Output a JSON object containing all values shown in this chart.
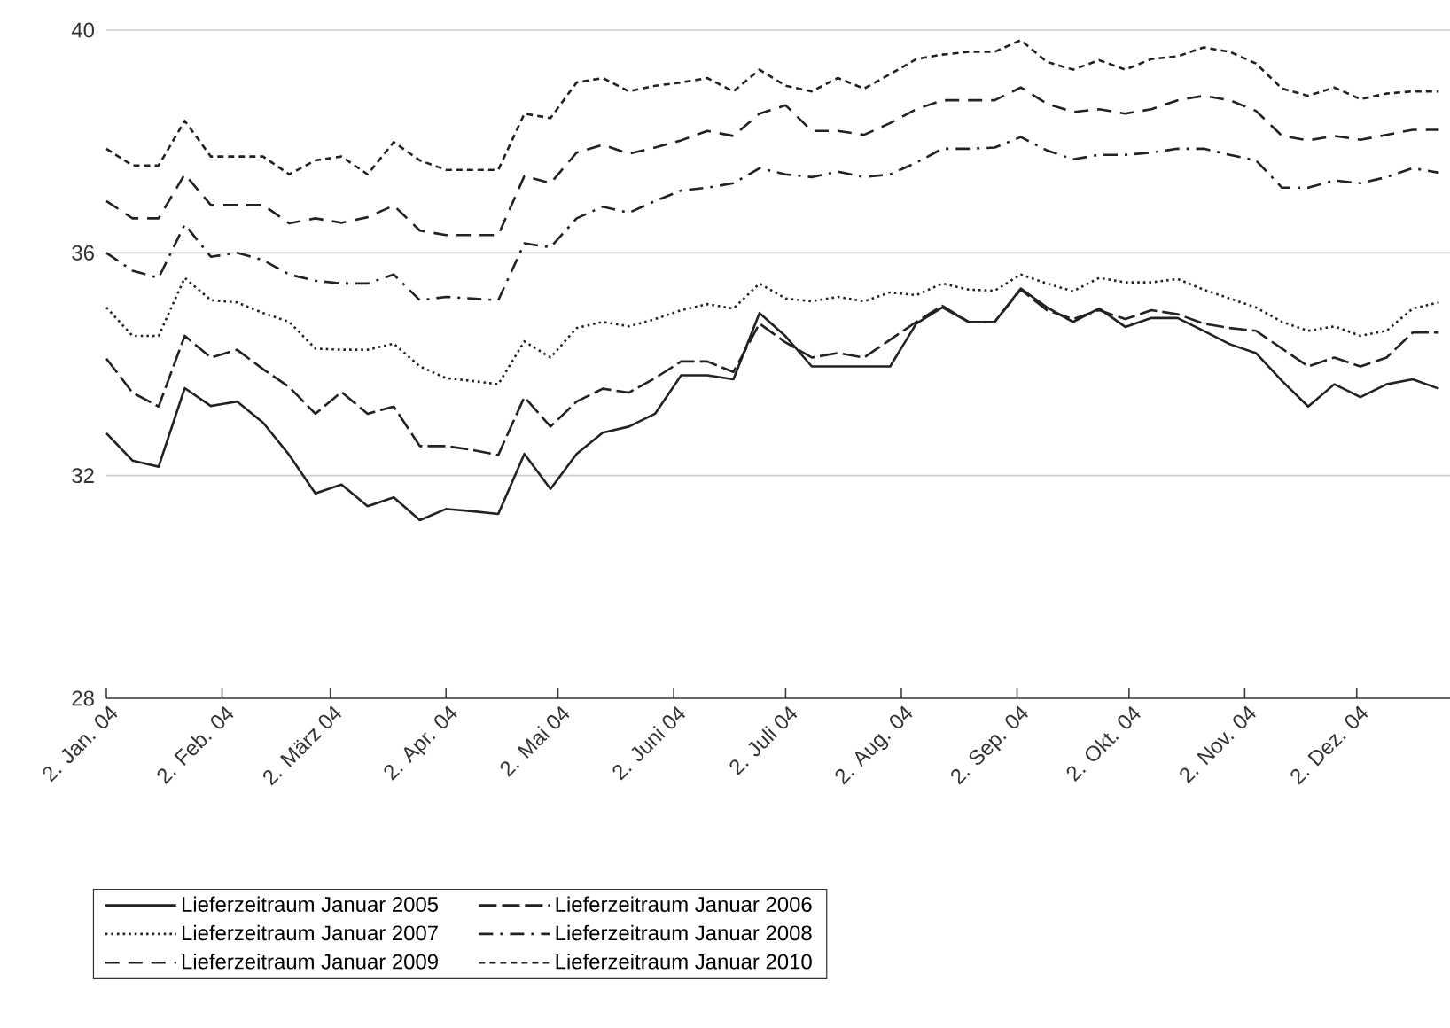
{
  "chart_data": {
    "type": "line",
    "x": [
      "2004-01-02",
      "2004-01-09",
      "2004-01-16",
      "2004-01-23",
      "2004-01-30",
      "2004-02-06",
      "2004-02-13",
      "2004-02-20",
      "2004-02-27",
      "2004-03-05",
      "2004-03-12",
      "2004-03-19",
      "2004-03-26",
      "2004-04-02",
      "2004-04-09",
      "2004-04-16",
      "2004-04-23",
      "2004-04-30",
      "2004-05-07",
      "2004-05-14",
      "2004-05-21",
      "2004-05-28",
      "2004-06-04",
      "2004-06-11",
      "2004-06-18",
      "2004-06-25",
      "2004-07-02",
      "2004-07-09",
      "2004-07-16",
      "2004-07-23",
      "2004-07-30",
      "2004-08-06",
      "2004-08-13",
      "2004-08-20",
      "2004-08-27",
      "2004-09-03",
      "2004-09-10",
      "2004-09-17",
      "2004-09-24",
      "2004-10-01",
      "2004-10-08",
      "2004-10-15",
      "2004-10-22",
      "2004-10-29",
      "2004-11-05",
      "2004-11-12",
      "2004-11-19",
      "2004-11-26",
      "2004-12-03",
      "2004-12-10",
      "2004-12-17",
      "2004-12-24"
    ],
    "series": [
      {
        "name": "Lieferzeitraum Januar 2005",
        "color": "#222222",
        "line_style": "solid",
        "values": [
          32.76,
          32.27,
          32.16,
          33.57,
          33.25,
          33.33,
          32.95,
          32.37,
          31.68,
          31.84,
          31.45,
          31.61,
          31.2,
          31.4,
          31.36,
          31.31,
          32.39,
          31.76,
          32.39,
          32.77,
          32.88,
          33.11,
          33.8,
          33.8,
          33.73,
          34.92,
          34.5,
          33.96,
          33.96,
          33.96,
          33.96,
          34.73,
          35.02,
          34.76,
          34.76,
          35.36,
          35.02,
          34.76,
          35.0,
          34.67,
          34.83,
          34.83,
          34.6,
          34.36,
          34.2,
          33.7,
          33.24,
          33.64,
          33.41,
          33.64,
          33.73,
          33.56
        ]
      },
      {
        "name": "Lieferzeitraum Januar 2006",
        "color": "#222222",
        "line_style": "long dashed",
        "values": [
          34.1,
          33.49,
          33.24,
          34.51,
          34.12,
          34.26,
          33.91,
          33.59,
          33.11,
          33.5,
          33.11,
          33.24,
          32.53,
          32.53,
          32.46,
          32.37,
          33.41,
          32.88,
          33.33,
          33.56,
          33.49,
          33.75,
          34.05,
          34.05,
          33.86,
          34.73,
          34.39,
          34.12,
          34.2,
          34.12,
          34.44,
          34.76,
          35.05,
          34.76,
          34.76,
          35.34,
          34.97,
          34.81,
          34.97,
          34.81,
          34.97,
          34.9,
          34.73,
          34.65,
          34.6,
          34.28,
          33.96,
          34.12,
          33.96,
          34.12,
          34.57,
          34.57
        ]
      },
      {
        "name": "Lieferzeitraum Januar 2007",
        "color": "#222222",
        "line_style": "dotted",
        "values": [
          35.02,
          34.51,
          34.51,
          35.55,
          35.15,
          35.11,
          34.92,
          34.76,
          34.28,
          34.26,
          34.26,
          34.37,
          33.96,
          33.75,
          33.7,
          33.64,
          34.41,
          34.12,
          34.65,
          34.76,
          34.68,
          34.81,
          34.97,
          35.08,
          35.0,
          35.45,
          35.18,
          35.13,
          35.21,
          35.13,
          35.29,
          35.24,
          35.45,
          35.34,
          35.32,
          35.61,
          35.45,
          35.31,
          35.55,
          35.47,
          35.47,
          35.53,
          35.34,
          35.18,
          35.02,
          34.76,
          34.6,
          34.68,
          34.51,
          34.6,
          35.0,
          35.11
        ]
      },
      {
        "name": "Lieferzeitraum Januar 2008",
        "color": "#222222",
        "line_style": "dash dot",
        "values": [
          36.0,
          35.68,
          35.55,
          36.51,
          35.93,
          36.0,
          35.87,
          35.61,
          35.5,
          35.45,
          35.45,
          35.61,
          35.15,
          35.21,
          35.18,
          35.15,
          36.17,
          36.1,
          36.62,
          36.83,
          36.72,
          36.93,
          37.12,
          37.17,
          37.25,
          37.52,
          37.41,
          37.36,
          37.46,
          37.36,
          37.41,
          37.62,
          37.87,
          37.87,
          37.89,
          38.08,
          37.84,
          37.68,
          37.76,
          37.76,
          37.8,
          37.87,
          37.87,
          37.76,
          37.66,
          37.17,
          37.17,
          37.3,
          37.25,
          37.36,
          37.52,
          37.44
        ]
      },
      {
        "name": "Lieferzeitraum Januar 2009",
        "color": "#222222",
        "line_style": "dashed",
        "values": [
          36.93,
          36.62,
          36.62,
          37.41,
          36.86,
          36.86,
          36.86,
          36.53,
          36.62,
          36.54,
          36.64,
          36.85,
          36.4,
          36.32,
          36.32,
          36.32,
          37.38,
          37.25,
          37.8,
          37.94,
          37.78,
          37.89,
          38.02,
          38.19,
          38.1,
          38.5,
          38.65,
          38.19,
          38.19,
          38.12,
          38.33,
          38.58,
          38.74,
          38.74,
          38.74,
          38.97,
          38.68,
          38.53,
          38.58,
          38.5,
          38.58,
          38.74,
          38.82,
          38.74,
          38.55,
          38.1,
          38.02,
          38.1,
          38.03,
          38.12,
          38.21,
          38.21
        ]
      },
      {
        "name": "Lieferzeitraum Januar 2010",
        "color": "#222222",
        "line_style": "densely dashed",
        "values": [
          37.87,
          37.57,
          37.57,
          38.37,
          37.73,
          37.73,
          37.73,
          37.41,
          37.66,
          37.73,
          37.41,
          37.99,
          37.66,
          37.49,
          37.49,
          37.49,
          38.5,
          38.42,
          39.06,
          39.14,
          38.9,
          39.0,
          39.06,
          39.14,
          38.9,
          39.29,
          39.0,
          38.9,
          39.14,
          38.95,
          39.21,
          39.48,
          39.56,
          39.61,
          39.61,
          39.82,
          39.43,
          39.29,
          39.46,
          39.29,
          39.48,
          39.53,
          39.69,
          39.61,
          39.4,
          38.95,
          38.82,
          38.97,
          38.76,
          38.86,
          38.9,
          38.9
        ]
      }
    ],
    "xlim": [
      "2004-01-02",
      "2004-12-27"
    ],
    "xticks": [
      {
        "value": "2004-01-02",
        "label": "2. Jan. 04"
      },
      {
        "value": "2004-02-02",
        "label": "2. Feb. 04"
      },
      {
        "value": "2004-03-02",
        "label": "2. März 04"
      },
      {
        "value": "2004-04-02",
        "label": "2. Apr. 04"
      },
      {
        "value": "2004-05-02",
        "label": "2. Mai 04"
      },
      {
        "value": "2004-06-02",
        "label": "2. Juni 04"
      },
      {
        "value": "2004-07-02",
        "label": "2. Juli 04"
      },
      {
        "value": "2004-08-02",
        "label": "2. Aug. 04"
      },
      {
        "value": "2004-09-02",
        "label": "2. Sep. 04"
      },
      {
        "value": "2004-10-02",
        "label": "2. Okt. 04"
      },
      {
        "value": "2004-11-02",
        "label": "2. Nov. 04"
      },
      {
        "value": "2004-12-02",
        "label": "2. Dez. 04"
      }
    ],
    "ylim": [
      28,
      40
    ],
    "yticks": [
      28,
      32,
      36,
      40
    ],
    "grid": "y",
    "legend": "bottom"
  }
}
